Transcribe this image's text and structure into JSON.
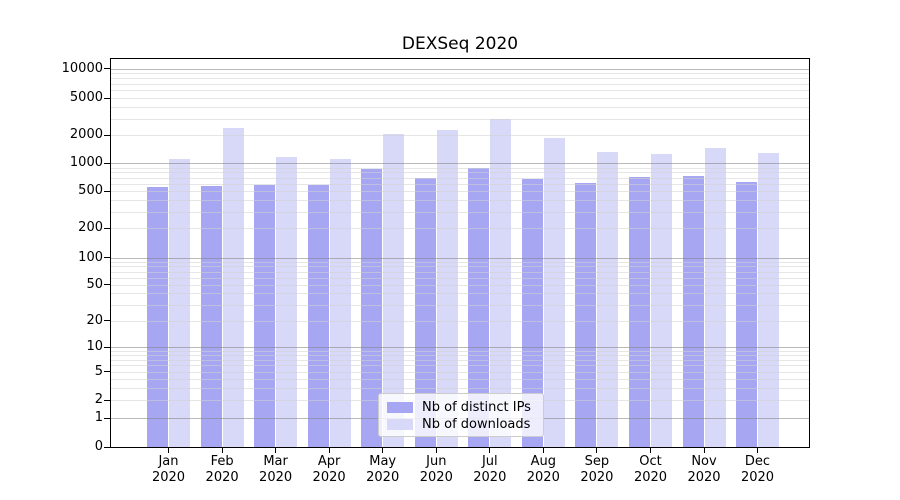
{
  "chart_data": {
    "type": "bar",
    "title": "DEXSeq 2020",
    "categories": [
      "Jan 2020",
      "Feb 2020",
      "Mar 2020",
      "Apr 2020",
      "May 2020",
      "Jun 2020",
      "Jul 2020",
      "Aug 2020",
      "Sep 2020",
      "Oct 2020",
      "Nov 2020",
      "Dec 2020"
    ],
    "series": [
      {
        "name": "Nb of distinct IPs",
        "color": "#a6a6f2",
        "values": [
          560,
          565,
          590,
          590,
          860,
          690,
          900,
          680,
          610,
          720,
          740,
          635
        ]
      },
      {
        "name": "Nb of downloads",
        "color": "#d8d8f8",
        "values": [
          1100,
          2370,
          1180,
          1120,
          2050,
          2240,
          2990,
          1880,
          1310,
          1250,
          1450,
          1300
        ]
      }
    ],
    "xlabel": "",
    "ylabel": "",
    "yscale": "symlog",
    "yticks": [
      0,
      1,
      2,
      5,
      10,
      20,
      50,
      100,
      200,
      500,
      1000,
      2000,
      5000,
      10000
    ],
    "ylim": [
      0,
      13000
    ],
    "grid": "horizontal, major and minor, drawn over bars",
    "legend_position": "inside lower-center"
  },
  "colors": {
    "background": "#ffffff",
    "axis_spine": "#000000",
    "grid_major": "#9a9a9a",
    "grid_minor": "#d9d9d9",
    "text": "#000000",
    "legend_border": "#cccccc"
  }
}
